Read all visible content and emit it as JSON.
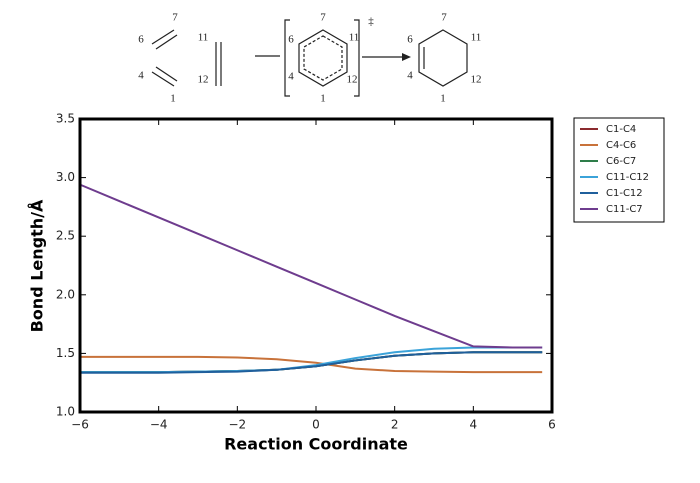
{
  "scheme": {
    "reactants": {
      "diene": [
        "7",
        "6",
        "4",
        "1"
      ],
      "dienophile": [
        "11",
        "12"
      ]
    },
    "transition_state": {
      "labels": [
        "7",
        "6",
        "11",
        "4",
        "12",
        "1"
      ],
      "symbol": "‡"
    },
    "product": {
      "labels": [
        "7",
        "6",
        "11",
        "4",
        "12",
        "1"
      ]
    }
  },
  "chart_data": {
    "type": "line",
    "x_label": "Reaction Coordinate",
    "y_label": "Bond Length/Å",
    "x": [
      -6,
      -5,
      -4,
      -3,
      -2,
      -1,
      0,
      1,
      2,
      3,
      4,
      5,
      5.75
    ],
    "series": [
      {
        "name": "C1-C4",
        "color": "#8b2a2e",
        "values": [
          1.34,
          1.34,
          1.34,
          1.345,
          1.35,
          1.36,
          1.39,
          1.44,
          1.48,
          1.5,
          1.51,
          1.51,
          1.51
        ]
      },
      {
        "name": "C4-C6",
        "color": "#c8723a",
        "values": [
          1.47,
          1.47,
          1.47,
          1.47,
          1.465,
          1.45,
          1.42,
          1.37,
          1.35,
          1.345,
          1.34,
          1.34,
          1.34
        ]
      },
      {
        "name": "C6-C7",
        "color": "#2e7d4a",
        "values": [
          1.34,
          1.34,
          1.34,
          1.345,
          1.35,
          1.36,
          1.39,
          1.44,
          1.48,
          1.5,
          1.51,
          1.51,
          1.51
        ]
      },
      {
        "name": "C11-C12",
        "color": "#3ba3d9",
        "values": [
          1.34,
          1.34,
          1.34,
          1.345,
          1.35,
          1.36,
          1.4,
          1.46,
          1.51,
          1.54,
          1.55,
          1.55,
          1.55
        ]
      },
      {
        "name": "C1-C12",
        "color": "#1f5f9c",
        "values": [
          1.335,
          1.335,
          1.335,
          1.34,
          1.345,
          1.36,
          1.39,
          1.44,
          1.48,
          1.5,
          1.51,
          1.51,
          1.51
        ]
      },
      {
        "name": "C11-C7",
        "color": "#6e3c8e",
        "values": [
          2.94,
          2.8,
          2.66,
          2.52,
          2.38,
          2.24,
          2.1,
          1.96,
          1.82,
          1.69,
          1.56,
          1.55,
          1.55
        ]
      }
    ],
    "xlim": [
      -6,
      6
    ],
    "ylim": [
      1,
      3.5
    ],
    "xticks": [
      {
        "value": -6,
        "label": "−6"
      },
      {
        "value": -4,
        "label": "−4"
      },
      {
        "value": -2,
        "label": "−2"
      },
      0,
      2,
      4,
      6
    ],
    "yticks": [
      {
        "value": 1,
        "label": "1.0"
      },
      1.5,
      {
        "value": 2,
        "label": "2.0"
      },
      2.5,
      {
        "value": 3,
        "label": "3.0"
      },
      3.5
    ],
    "legend": "outside-right"
  }
}
